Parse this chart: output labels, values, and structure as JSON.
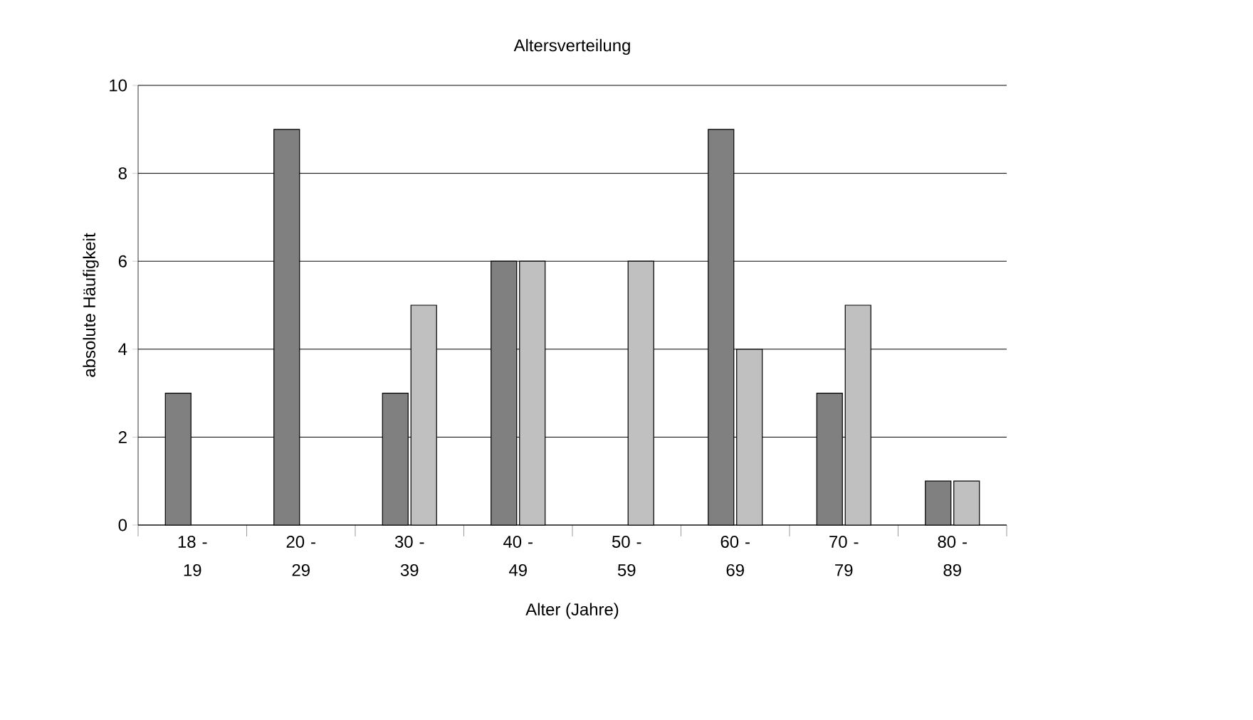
{
  "chart_data": {
    "type": "bar",
    "title": "Altersverteilung",
    "xlabel": "Alter (Jahre)",
    "ylabel": "absolute Häufigkeit",
    "categories": [
      "18 - 19",
      "20 - 29",
      "30 - 39",
      "40 - 49",
      "50 - 59",
      "60 - 69",
      "70 - 79",
      "80 - 89"
    ],
    "series": [
      {
        "color": "#808080",
        "values": [
          3,
          9,
          3,
          6,
          0,
          9,
          3,
          1
        ]
      },
      {
        "color": "#c0c0c0",
        "values": [
          0,
          0,
          5,
          6,
          6,
          4,
          5,
          1
        ]
      }
    ],
    "ylim": [
      0,
      10
    ],
    "yticks": [
      0,
      2,
      4,
      6,
      8,
      10
    ],
    "grid": "y"
  }
}
